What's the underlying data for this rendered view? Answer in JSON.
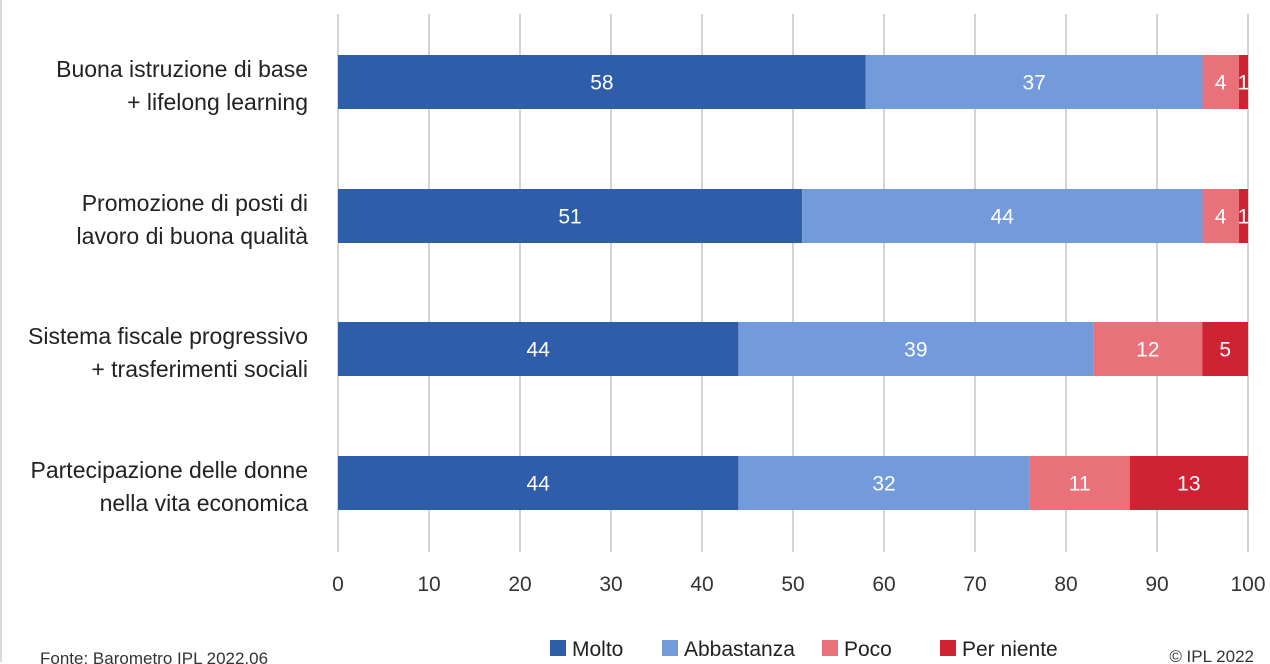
{
  "chart_data": {
    "type": "bar",
    "orientation": "horizontal",
    "stacked": true,
    "categories": [
      [
        "Buona istruzione di base",
        "+ lifelong learning"
      ],
      [
        "Promozione di posti di",
        "lavoro di buona qualità"
      ],
      [
        "Sistema fiscale progressivo",
        "+ trasferimenti sociali"
      ],
      [
        "Partecipazione delle donne",
        "nella vita economica"
      ]
    ],
    "series": [
      {
        "name": "Molto",
        "color": "#2e5daa",
        "values": [
          58,
          51,
          44,
          44
        ]
      },
      {
        "name": "Abbastanza",
        "color": "#739bdc",
        "values": [
          37,
          44,
          39,
          32
        ]
      },
      {
        "name": "Poco",
        "color": "#e9717a",
        "values": [
          4,
          4,
          12,
          11
        ]
      },
      {
        "name": "Per niente",
        "color": "#cf2232",
        "values": [
          1,
          1,
          5,
          13
        ]
      }
    ],
    "xlim": [
      0,
      100
    ],
    "xticks": [
      0,
      10,
      20,
      30,
      40,
      50,
      60,
      70,
      80,
      90,
      100
    ],
    "grid": "vertical",
    "legend_position": "bottom"
  },
  "footer": {
    "source": "Fonte: Barometro IPL 2022.06",
    "copyright": "© IPL 2022"
  }
}
